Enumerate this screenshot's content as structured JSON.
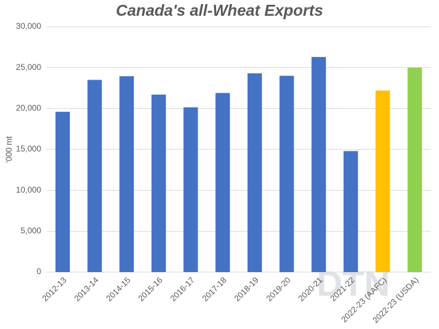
{
  "chart_data": {
    "type": "bar",
    "title": "Canada's all-Wheat Exports",
    "y_label": "'000 mt",
    "watermark": "DTN",
    "categories": [
      "2012-13",
      "2013-14",
      "2014-15",
      "2015-16",
      "2016-17",
      "2017-18",
      "2018-19",
      "2019-20",
      "2020-21",
      "2021-22",
      "2022-23 (AAFC)",
      "2022-23 (USDA)"
    ],
    "values": [
      19600,
      23500,
      23950,
      21700,
      20150,
      21900,
      24300,
      24000,
      26300,
      14800,
      22200,
      25000
    ],
    "colors": [
      "#4472c4",
      "#4472c4",
      "#4472c4",
      "#4472c4",
      "#4472c4",
      "#4472c4",
      "#4472c4",
      "#4472c4",
      "#4472c4",
      "#4472c4",
      "#ffc000",
      "#92d050"
    ],
    "ylim": [
      0,
      30000
    ],
    "yticks": [
      0,
      {
        "value": 5000,
        "label": "5,000"
      },
      {
        "value": 10000,
        "label": "10,000"
      },
      {
        "value": 15000,
        "label": "15,000"
      },
      {
        "value": 20000,
        "label": "20,000"
      },
      {
        "value": 25000,
        "label": "25,000"
      },
      {
        "value": 30000,
        "label": "30,000"
      }
    ],
    "grid": true
  }
}
